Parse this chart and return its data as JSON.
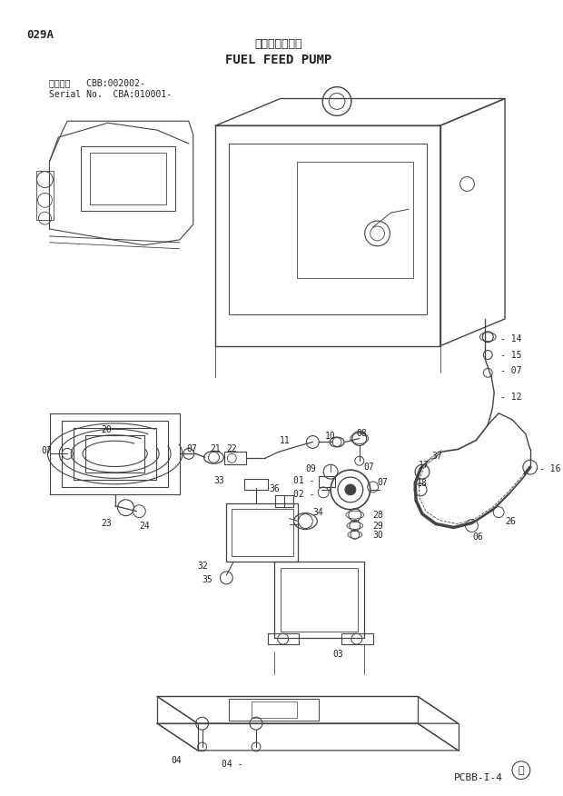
{
  "title_jp": "燃料給油ポンプ",
  "title_en": "FUEL FEED PUMP",
  "page_code": "029A",
  "serial_info_line1": "適用号機   CBB:002002-",
  "serial_info_line2": "Serial No.  CBA:010001-",
  "page_ref": "PCBB-I-4",
  "bg_color": "#ffffff",
  "lc": "#444444",
  "tc": "#222222"
}
